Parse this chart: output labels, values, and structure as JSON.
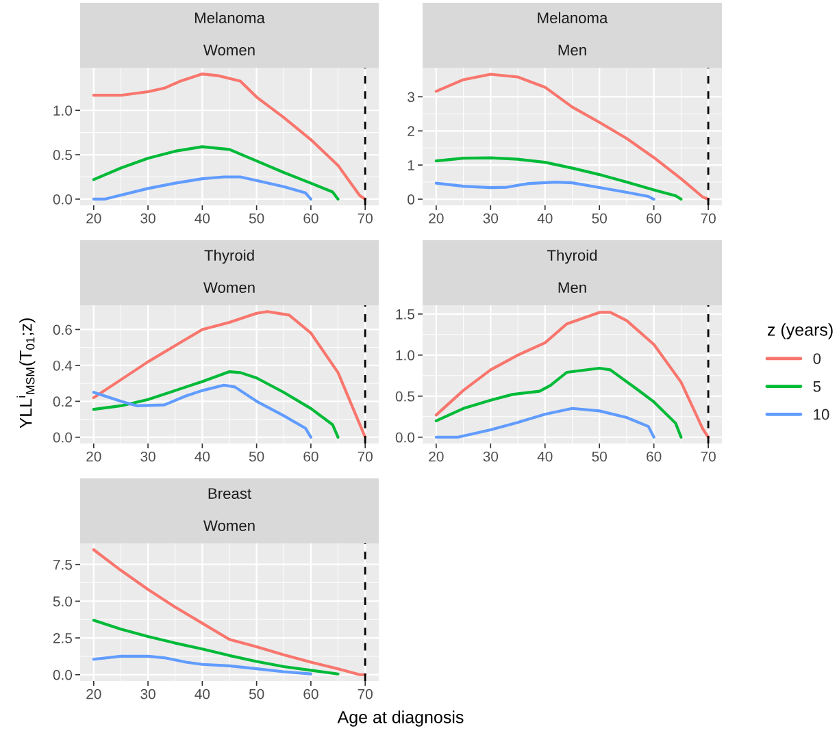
{
  "chart_data": [
    {
      "type": "line",
      "title": "Melanoma",
      "subtitle": "Women",
      "xlim": [
        17.5,
        72.5
      ],
      "xticks": [
        20,
        30,
        40,
        50,
        60,
        70
      ],
      "ylim": [
        -0.07,
        1.48
      ],
      "yticks": [
        {
          "value": 0,
          "label": "0.0"
        },
        0.5,
        {
          "value": 1,
          "label": "1.0"
        }
      ],
      "grid": true,
      "legend": "right",
      "legend_title": "z (years)",
      "ref_lines": [
        {
          "axis": "x",
          "value": 70,
          "color": "#000000",
          "line_style": "dashed"
        }
      ],
      "series": [
        {
          "name": "0",
          "color": "#f8766d",
          "x": [
            20,
            25,
            30,
            33,
            36,
            40,
            43,
            47,
            50,
            55,
            60,
            65,
            69,
            70
          ],
          "values": [
            1.17,
            1.17,
            1.21,
            1.25,
            1.33,
            1.41,
            1.39,
            1.33,
            1.15,
            0.92,
            0.67,
            0.38,
            0.04,
            0
          ]
        },
        {
          "name": "5",
          "color": "#00ba38",
          "x": [
            20,
            25,
            30,
            35,
            40,
            45,
            50,
            55,
            60,
            64,
            65
          ],
          "values": [
            0.22,
            0.35,
            0.46,
            0.54,
            0.59,
            0.56,
            0.43,
            0.3,
            0.18,
            0.08,
            0
          ]
        },
        {
          "name": "10",
          "color": "#619cff",
          "x": [
            20,
            22,
            30,
            35,
            40,
            44,
            47,
            50,
            55,
            59,
            60
          ],
          "values": [
            0,
            0,
            0.12,
            0.18,
            0.23,
            0.25,
            0.25,
            0.21,
            0.14,
            0.07,
            0
          ]
        }
      ]
    },
    {
      "type": "line",
      "title": "Melanoma",
      "subtitle": "Men",
      "xlim": [
        17.5,
        72.5
      ],
      "xticks": [
        20,
        30,
        40,
        50,
        60,
        70
      ],
      "ylim": [
        -0.18,
        3.85
      ],
      "yticks": [
        0,
        1,
        2,
        3
      ],
      "grid": true,
      "ref_lines": [
        {
          "axis": "x",
          "value": 70,
          "color": "#000000",
          "line_style": "dashed"
        }
      ],
      "series": [
        {
          "name": "0",
          "color": "#f8766d",
          "x": [
            20,
            25,
            30,
            35,
            40,
            45,
            50,
            55,
            60,
            65,
            69,
            70
          ],
          "values": [
            3.16,
            3.5,
            3.66,
            3.58,
            3.28,
            2.7,
            2.25,
            1.78,
            1.22,
            0.6,
            0.06,
            0
          ]
        },
        {
          "name": "5",
          "color": "#00ba38",
          "x": [
            20,
            25,
            30,
            35,
            40,
            45,
            50,
            55,
            60,
            64,
            65
          ],
          "values": [
            1.12,
            1.2,
            1.21,
            1.17,
            1.08,
            0.91,
            0.72,
            0.5,
            0.27,
            0.1,
            0
          ]
        },
        {
          "name": "10",
          "color": "#619cff",
          "x": [
            20,
            25,
            30,
            33,
            37,
            42,
            45,
            50,
            55,
            59,
            60
          ],
          "values": [
            0.47,
            0.38,
            0.34,
            0.35,
            0.46,
            0.5,
            0.48,
            0.34,
            0.2,
            0.08,
            0
          ]
        }
      ]
    },
    {
      "type": "line",
      "title": "Thyroid",
      "subtitle": "Women",
      "ylabel": "YLL$^{i}$$_{MSM}$(T$_{01}$;z)",
      "xlim": [
        17.5,
        72.5
      ],
      "xticks": [
        20,
        30,
        40,
        50,
        60,
        70
      ],
      "ylim": [
        -0.035,
        0.735
      ],
      "yticks": [
        {
          "value": 0,
          "label": "0.0"
        },
        0.2,
        0.4,
        0.6
      ],
      "grid": true,
      "ref_lines": [
        {
          "axis": "x",
          "value": 70,
          "color": "#000000",
          "line_style": "dashed"
        }
      ],
      "series": [
        {
          "name": "0",
          "color": "#f8766d",
          "x": [
            20,
            25,
            30,
            35,
            40,
            45,
            50,
            52,
            56,
            60,
            65,
            70
          ],
          "values": [
            0.22,
            0.32,
            0.42,
            0.51,
            0.6,
            0.64,
            0.69,
            0.7,
            0.68,
            0.58,
            0.36,
            0
          ]
        },
        {
          "name": "5",
          "color": "#00ba38",
          "x": [
            20,
            25,
            30,
            35,
            40,
            45,
            47,
            50,
            55,
            60,
            64,
            65
          ],
          "values": [
            0.155,
            0.175,
            0.21,
            0.26,
            0.31,
            0.365,
            0.36,
            0.33,
            0.25,
            0.16,
            0.07,
            0
          ]
        },
        {
          "name": "10",
          "color": "#619cff",
          "x": [
            20,
            25,
            28,
            33,
            37,
            40,
            44,
            46,
            50,
            55,
            59,
            60
          ],
          "values": [
            0.25,
            0.2,
            0.175,
            0.18,
            0.23,
            0.26,
            0.29,
            0.28,
            0.2,
            0.12,
            0.05,
            0
          ]
        }
      ]
    },
    {
      "type": "line",
      "title": "Thyroid",
      "subtitle": "Men",
      "xlim": [
        17.5,
        72.5
      ],
      "xticks": [
        20,
        30,
        40,
        50,
        60,
        70
      ],
      "ylim": [
        -0.077,
        1.607
      ],
      "yticks": [
        {
          "value": 0,
          "label": "0.0"
        },
        0.5,
        {
          "value": 1,
          "label": "1.0"
        },
        1.5
      ],
      "grid": true,
      "ref_lines": [
        {
          "axis": "x",
          "value": 70,
          "color": "#000000",
          "line_style": "dashed"
        }
      ],
      "series": [
        {
          "name": "0",
          "color": "#f8766d",
          "x": [
            20,
            25,
            30,
            35,
            40,
            44,
            50,
            52,
            55,
            60,
            65,
            69,
            70
          ],
          "values": [
            0.27,
            0.57,
            0.82,
            1.0,
            1.15,
            1.38,
            1.52,
            1.52,
            1.42,
            1.13,
            0.67,
            0.1,
            0
          ]
        },
        {
          "name": "5",
          "color": "#00ba38",
          "x": [
            20,
            25,
            30,
            34,
            39,
            41,
            44,
            50,
            52,
            57,
            60,
            64,
            65
          ],
          "values": [
            0.2,
            0.35,
            0.45,
            0.52,
            0.56,
            0.63,
            0.79,
            0.84,
            0.82,
            0.58,
            0.43,
            0.17,
            0
          ]
        },
        {
          "name": "10",
          "color": "#619cff",
          "x": [
            20,
            24,
            30,
            35,
            40,
            45,
            50,
            55,
            59,
            60
          ],
          "values": [
            0,
            0,
            0.09,
            0.18,
            0.28,
            0.35,
            0.32,
            0.24,
            0.13,
            0
          ]
        }
      ]
    },
    {
      "type": "line",
      "title": "Breast",
      "subtitle": "Women",
      "xlabel": "Age at diagnosis",
      "xlim": [
        17.5,
        72.5
      ],
      "xticks": [
        20,
        30,
        40,
        50,
        60,
        70
      ],
      "ylim": [
        -0.43,
        8.93
      ],
      "yticks": [
        {
          "value": 0,
          "label": "0.0"
        },
        2.5,
        {
          "value": 5,
          "label": "5.0"
        },
        7.5
      ],
      "grid": true,
      "ref_lines": [
        {
          "axis": "x",
          "value": 70,
          "color": "#000000",
          "line_style": "dashed"
        }
      ],
      "series": [
        {
          "name": "0",
          "color": "#f8766d",
          "x": [
            20,
            25,
            30,
            35,
            40,
            45,
            50,
            55,
            60,
            65,
            69,
            70
          ],
          "values": [
            8.5,
            7.1,
            5.8,
            4.6,
            3.5,
            2.4,
            1.9,
            1.35,
            0.85,
            0.4,
            0,
            0
          ]
        },
        {
          "name": "5",
          "color": "#00ba38",
          "x": [
            20,
            25,
            30,
            35,
            40,
            45,
            50,
            55,
            60,
            65
          ],
          "values": [
            3.7,
            3.1,
            2.6,
            2.15,
            1.75,
            1.3,
            0.9,
            0.55,
            0.3,
            0.05
          ]
        },
        {
          "name": "10",
          "color": "#619cff",
          "x": [
            20,
            25,
            30,
            33,
            37,
            40,
            45,
            50,
            55,
            60
          ],
          "values": [
            1.05,
            1.25,
            1.25,
            1.15,
            0.85,
            0.7,
            0.6,
            0.4,
            0.2,
            0.05
          ]
        }
      ]
    }
  ]
}
